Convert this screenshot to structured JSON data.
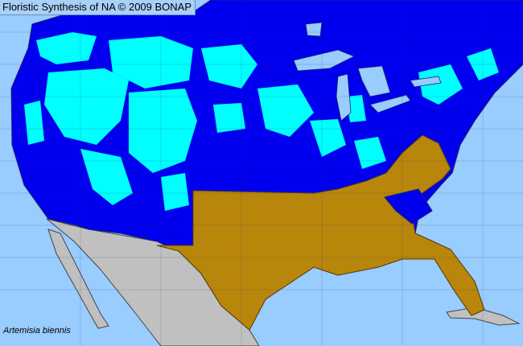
{
  "header": {
    "title": "Floristic Synthesis of NA © 2009 BONAP"
  },
  "map": {
    "species": "Artemisia biennis",
    "colors": {
      "ocean": "#99ccff",
      "present_native": "#0000ee",
      "present_county": "#00ffff",
      "absent_state": "#b8860b",
      "outside_range": "#c0c0c0",
      "border": "#333366"
    }
  }
}
